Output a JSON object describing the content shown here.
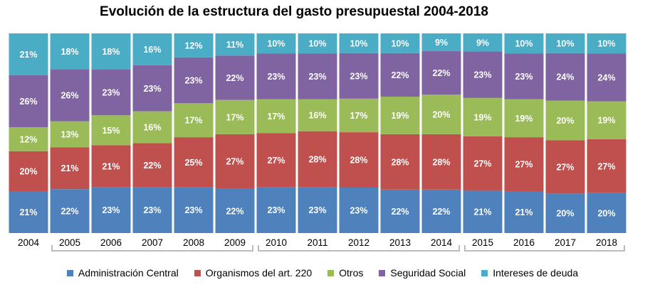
{
  "chart_data": {
    "type": "bar",
    "stacked": true,
    "percent_stacked": true,
    "title": "Evolución de la estructura del gasto presupuestal 2004-2018",
    "xlabel": "",
    "ylabel": "",
    "ylim": [
      0,
      100
    ],
    "grid": false,
    "legend_position": "bottom",
    "categories": [
      "2004",
      "2005",
      "2006",
      "2007",
      "2008",
      "2009",
      "2010",
      "2011",
      "2012",
      "2013",
      "2014",
      "2015",
      "2016",
      "2017",
      "2018"
    ],
    "series": [
      {
        "name": "Administración Central",
        "color": "#4f81bd",
        "values": [
          21,
          22,
          23,
          23,
          23,
          22,
          23,
          23,
          23,
          22,
          22,
          21,
          21,
          20,
          20
        ]
      },
      {
        "name": "Organismos del art. 220",
        "color": "#c0504d",
        "values": [
          20,
          21,
          21,
          22,
          25,
          27,
          27,
          28,
          28,
          28,
          28,
          27,
          27,
          27,
          27
        ]
      },
      {
        "name": "Otros",
        "color": "#9bbb59",
        "values": [
          12,
          13,
          15,
          16,
          17,
          17,
          17,
          16,
          17,
          19,
          20,
          19,
          19,
          20,
          19
        ]
      },
      {
        "name": "Seguridad Social",
        "color": "#8064a2",
        "values": [
          26,
          26,
          23,
          23,
          23,
          22,
          23,
          23,
          23,
          22,
          22,
          23,
          23,
          24,
          24
        ]
      },
      {
        "name": "Intereses de deuda",
        "color": "#4bacc6",
        "values": [
          21,
          18,
          18,
          16,
          12,
          11,
          10,
          10,
          10,
          10,
          9,
          9,
          10,
          10,
          10
        ]
      }
    ],
    "value_suffix": "%",
    "category_groups": [
      [
        1,
        5
      ],
      [
        6,
        10
      ],
      [
        11,
        14
      ]
    ]
  }
}
